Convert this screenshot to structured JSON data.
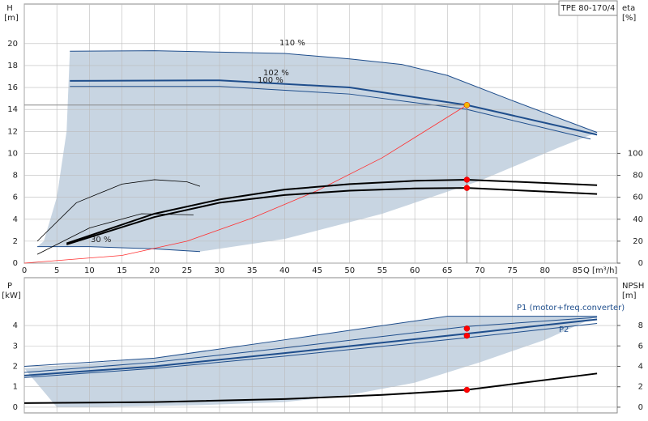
{
  "chart_data": [
    {
      "type": "line",
      "title": "TPE 80-170/4",
      "y_label": "H",
      "y_unit": "[m]",
      "y2_label": "eta",
      "y2_unit": "[%]",
      "x_label": "Q [m³/h]",
      "xlim": [
        0,
        91.1
      ],
      "ylim": [
        0,
        23.6
      ],
      "y2lim": [
        0,
        236
      ],
      "xticks": [
        0,
        5,
        10,
        15,
        20,
        25,
        30,
        35,
        40,
        45,
        50,
        55,
        60,
        65,
        70,
        75,
        80,
        85
      ],
      "yticks": [
        0,
        2,
        4,
        6,
        8,
        10,
        12,
        14,
        16,
        18,
        20
      ],
      "y2ticks": [
        0,
        20,
        40,
        60,
        80,
        100
      ],
      "grid": true,
      "areas": [
        {
          "color": "#c8d5e2",
          "x": [
            7,
            20,
            40,
            50,
            58,
            65,
            75,
            88,
            82,
            70,
            55,
            40,
            27,
            20,
            10,
            2,
            3,
            5,
            6.5
          ],
          "values": [
            19.3,
            19.35,
            19.1,
            18.6,
            18.1,
            17.1,
            14.8,
            11.9,
            10.5,
            7.5,
            4.5,
            2.2,
            1.05,
            1.3,
            1.5,
            1.5,
            2,
            6,
            12
          ]
        }
      ],
      "series": [
        {
          "name": "110 %",
          "color": "#1f4e8c",
          "width": 1,
          "x": [
            7,
            20,
            40,
            50,
            58,
            65,
            75,
            88
          ],
          "values": [
            19.3,
            19.35,
            19.1,
            18.6,
            18.1,
            17.1,
            14.8,
            11.9
          ]
        },
        {
          "name": "102 %",
          "color": "#1f4e8c",
          "width": 2,
          "x": [
            7,
            30,
            50,
            68,
            88
          ],
          "values": [
            16.6,
            16.65,
            16.0,
            14.4,
            11.7
          ]
        },
        {
          "name": "100 %",
          "color": "#1f4e8c",
          "width": 1,
          "x": [
            7,
            30,
            50,
            68,
            87
          ],
          "values": [
            16.1,
            16.1,
            15.4,
            14.0,
            11.3
          ]
        },
        {
          "name": "30 %",
          "color": "#1f4e8c",
          "width": 1,
          "x": [
            2,
            10,
            20,
            27
          ],
          "values": [
            1.5,
            1.5,
            1.3,
            1.05
          ]
        },
        {
          "color": "#ff3030",
          "width": 0.8,
          "x": [
            0,
            15,
            25,
            35,
            45,
            55,
            68
          ],
          "values": [
            0,
            0.7,
            2.0,
            4.1,
            6.6,
            9.6,
            14.4
          ]
        },
        {
          "color": "#888888",
          "width": 1,
          "x": [
            0,
            68,
            68
          ],
          "values": [
            14.4,
            14.4,
            0
          ]
        },
        {
          "color": "#000000",
          "width": 2,
          "axis": "y2",
          "x": [
            6.5,
            20,
            30,
            40,
            50,
            60,
            68,
            88
          ],
          "values": [
            18,
            45,
            58,
            67,
            72,
            75,
            76,
            71
          ]
        },
        {
          "color": "#000000",
          "width": 2,
          "axis": "y2",
          "x": [
            6.5,
            20,
            30,
            40,
            50,
            60,
            68,
            88
          ],
          "values": [
            17,
            42,
            55,
            62,
            66,
            68,
            68.5,
            63
          ]
        },
        {
          "color": "#000000",
          "width": 0.8,
          "axis": "y2",
          "x": [
            2,
            8,
            15,
            20,
            25,
            27
          ],
          "values": [
            20,
            55,
            72,
            76,
            74,
            70
          ]
        },
        {
          "color": "#000000",
          "width": 0.8,
          "axis": "y2",
          "x": [
            2,
            10,
            18,
            26
          ],
          "values": [
            8,
            32,
            45,
            44
          ]
        }
      ],
      "markers": [
        {
          "color": "#f5b800",
          "x": 68,
          "value": 14.4
        },
        {
          "color": "#ff0000",
          "axis": "y2",
          "x": 68,
          "value": 76
        },
        {
          "color": "#ff0000",
          "axis": "y2",
          "x": 68,
          "value": 68.5
        }
      ]
    },
    {
      "type": "line",
      "y_label": "P",
      "y_unit": "[kW]",
      "y2_label": "NPSH",
      "y2_unit": "[m]",
      "xlim": [
        0,
        91.1
      ],
      "ylim": [
        -0.28,
        6.34
      ],
      "y2lim": [
        -0.56,
        12.68
      ],
      "xticks": [
        0,
        5,
        10,
        15,
        20,
        25,
        30,
        35,
        40,
        45,
        50,
        55,
        60,
        65,
        70,
        75,
        80,
        85
      ],
      "yticks": [
        0,
        1,
        2,
        3,
        4
      ],
      "y2ticks": [
        0,
        2,
        4,
        6,
        8
      ],
      "grid": true,
      "areas": [
        {
          "color": "#c8d5e2",
          "x": [
            0,
            20,
            40,
            65,
            88,
            80,
            70,
            60,
            50,
            40,
            27,
            10,
            5
          ],
          "values": [
            1.9,
            2.4,
            3.3,
            4.45,
            4.45,
            3.3,
            2.2,
            1.2,
            0.6,
            0.25,
            0.1,
            0,
            0
          ]
        }
      ],
      "series": [
        {
          "name": "P1 (motor+freq.converter)",
          "color": "#1f4e8c",
          "width": 1,
          "x": [
            0,
            20,
            40,
            65,
            88
          ],
          "values": [
            2.0,
            2.4,
            3.3,
            4.45,
            4.45
          ]
        },
        {
          "color": "#1f4e8c",
          "width": 1,
          "x": [
            0,
            20,
            40,
            68,
            88
          ],
          "values": [
            1.7,
            2.2,
            2.9,
            3.95,
            4.4
          ]
        },
        {
          "color": "#1f4e8c",
          "width": 2,
          "x": [
            0,
            20,
            40,
            68,
            88
          ],
          "values": [
            1.55,
            2.0,
            2.65,
            3.6,
            4.3
          ]
        },
        {
          "name": "P2",
          "color": "#1f4e8c",
          "width": 1,
          "x": [
            0,
            20,
            40,
            68,
            88
          ],
          "values": [
            1.45,
            1.9,
            2.5,
            3.4,
            4.1
          ]
        },
        {
          "color": "#000000",
          "width": 2,
          "axis": "y2",
          "x": [
            0,
            20,
            40,
            55,
            68,
            88
          ],
          "values": [
            0.4,
            0.5,
            0.8,
            1.2,
            1.7,
            3.3
          ]
        }
      ],
      "markers": [
        {
          "color": "#ff0000",
          "x": 68,
          "value": 3.85
        },
        {
          "color": "#ff0000",
          "x": 68,
          "value": 3.5
        },
        {
          "color": "#ff0000",
          "axis": "y2",
          "x": 68,
          "value": 1.7
        }
      ]
    }
  ]
}
